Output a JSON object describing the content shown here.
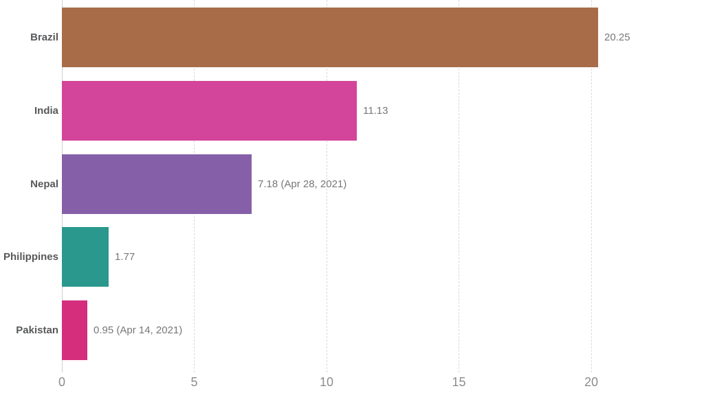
{
  "chart_data": {
    "type": "bar",
    "orientation": "horizontal",
    "title": "",
    "legend": "none",
    "categories": [
      "Brazil",
      "India",
      "Nepal",
      "Philippines",
      "Pakistan"
    ],
    "series": [
      {
        "name": "value",
        "values": [
          20.25,
          11.13,
          7.18,
          1.77,
          0.95
        ],
        "data_labels": [
          "20.25",
          "11.13",
          "7.18 (Apr 28, 2021)",
          "1.77",
          "0.95 (Apr 14, 2021)"
        ],
        "bar_colors": [
          "#a86c49",
          "#d3459a",
          "#8560a8",
          "#2a988c",
          "#d42e7c"
        ]
      }
    ],
    "x_axis": {
      "ticks": [
        0,
        5,
        10,
        15,
        20
      ],
      "tick_labels": [
        "0",
        "5",
        "10",
        "15",
        "20"
      ],
      "range": [
        0,
        24.26
      ],
      "grid": true,
      "grid_style": "dashed-vertical"
    },
    "y_axis": {
      "grid": false
    }
  },
  "colors": {
    "background": "#ffffff",
    "grid_line": "#d9d9d9",
    "zero_axis_line": "#cfcfcf",
    "category_label": "#57585a",
    "value_label": "#76777a",
    "tick_label": "#8a8c8e"
  }
}
